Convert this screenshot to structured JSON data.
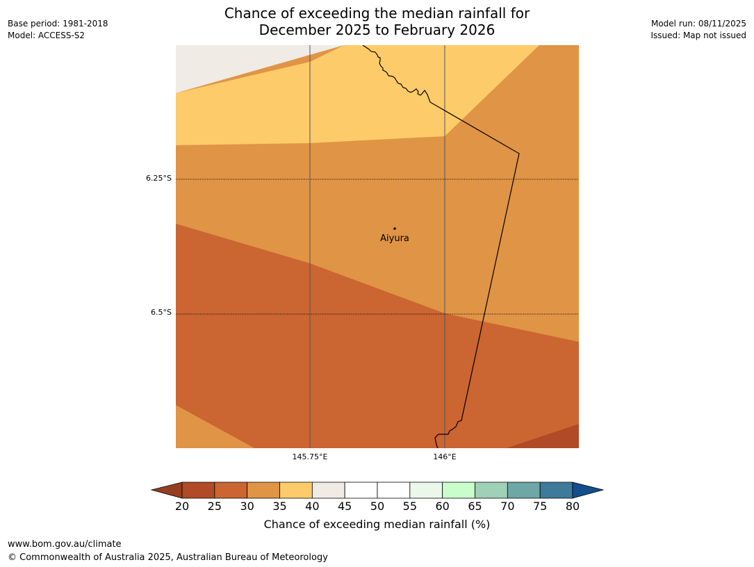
{
  "title": {
    "line1": "Chance of exceeding the median rainfall for",
    "line2": "December 2025 to February 2026"
  },
  "meta_left": {
    "base_period": "Base period: 1981-2018",
    "model": "Model: ACCESS-S2"
  },
  "meta_right": {
    "model_run": "Model run: 08/11/2025",
    "issued": "Issued: Map not issued"
  },
  "map": {
    "lat_labels": [
      "6.25°S",
      "6.5°S"
    ],
    "lon_labels": [
      "145.75°E",
      "146°E"
    ],
    "place": {
      "name": "Aiyura"
    },
    "category_colors": {
      "20-25": "#b04a27",
      "25-30": "#cb6532",
      "30-35": "#e09445",
      "35-40": "#fdcb69",
      "40-45": "#f0ebe5"
    }
  },
  "colorbar": {
    "ticks": [
      "20",
      "25",
      "30",
      "35",
      "40",
      "45",
      "50",
      "55",
      "60",
      "65",
      "70",
      "75",
      "80"
    ],
    "colors": [
      "#b04a27",
      "#cb6532",
      "#e09445",
      "#fdcb69",
      "#f0ebe5",
      "#ffffff",
      "#ffffff",
      "#eaf7ea",
      "#c9fdcb",
      "#9fd0b8",
      "#6fa6a6",
      "#3e7a9a"
    ],
    "under_color": "#963d22",
    "over_color": "#134e8c",
    "label": "Chance of exceeding median rainfall (%)"
  },
  "footer": {
    "url": "www.bom.gov.au/climate",
    "copyright": "© Commonwealth of Australia 2025, Australian Bureau of Meteorology"
  }
}
